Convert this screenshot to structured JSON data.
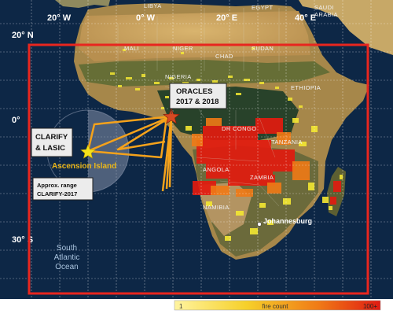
{
  "map": {
    "coords": {
      "lon_20w": "20° W",
      "lon_0w": "0° W",
      "lon_20e": "20° E",
      "lon_40e": "40° E",
      "lat_20n": "20° N",
      "lat_0": "0°",
      "lat_30s": "30° S"
    },
    "countries": {
      "libya": "LIBYA",
      "egypt": "EGYPT",
      "saudi": "SAUDI",
      "arabia": "ARABIA",
      "mali": "MALI",
      "niger": "NIGER",
      "chad": "CHAD",
      "sudan": "SUDAN",
      "nigeria": "NIGERIA",
      "ethiopia": "ETHIOPIA",
      "drcongo": "DR CONGO",
      "tanzania": "TANZANIA",
      "angola": "ANGOLA",
      "zambia": "ZAMBIA",
      "namibia": "NAMIBIA"
    },
    "places": {
      "johannesburg": "Johannesburg",
      "ascension": "Ascension Island",
      "ocean_line1": "South",
      "ocean_line2": "Atlantic",
      "ocean_line3": "Ocean"
    },
    "labels": {
      "oracles_line1": "ORACLES",
      "oracles_line2": "2017 & 2018",
      "clarify_line1": "CLARIFY",
      "clarify_line2": "& LASIC",
      "range_line1": "Approx. range",
      "range_line2": "CLARIFY-2017"
    },
    "legend": {
      "min": "1",
      "title": "fire count",
      "max": "100+"
    },
    "colors": {
      "ocean": "#0d2746",
      "domain_box": "#e8261f",
      "flight_tracks": "#f5a21b",
      "fire_high": "#e21b0f",
      "fire_low": "#f4e832"
    }
  }
}
